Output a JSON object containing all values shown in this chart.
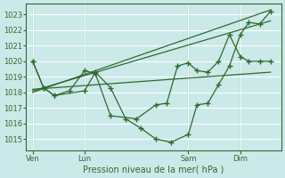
{
  "xlabel": "Pression niveau de la mer( hPa )",
  "bg_color": "#cce9e9",
  "grid_color": "#b0d8d8",
  "line_color": "#2d6a2d",
  "ylim": [
    1014.3,
    1023.7
  ],
  "yticks": [
    1015,
    1016,
    1017,
    1018,
    1019,
    1020,
    1021,
    1022,
    1023
  ],
  "xtick_labels": [
    "Ven",
    "Lun",
    "Sam",
    "Dim"
  ],
  "xtick_positions": [
    0,
    24,
    72,
    96
  ],
  "xlim": [
    -3,
    115
  ],
  "vlines": [
    0,
    24,
    72,
    96
  ],
  "trend1_x": [
    0,
    110
  ],
  "trend1_y": [
    1018.0,
    1023.3
  ],
  "trend2_x": [
    0,
    110
  ],
  "trend2_y": [
    1018.1,
    1022.6
  ],
  "trend3_x": [
    0,
    110
  ],
  "trend3_y": [
    1018.2,
    1019.3
  ],
  "jagged1_x": [
    0,
    5,
    10,
    17,
    24,
    29,
    36,
    48,
    57,
    62,
    67,
    72,
    76,
    81,
    86,
    91,
    96,
    100,
    105,
    110
  ],
  "jagged1_y": [
    1020.0,
    1018.3,
    1017.8,
    1018.1,
    1019.4,
    1019.2,
    1016.5,
    1016.3,
    1017.2,
    1017.3,
    1019.7,
    1019.9,
    1019.4,
    1019.3,
    1020.0,
    1021.7,
    1020.3,
    1020.0,
    1020.0,
    1020.0
  ],
  "jagged2_x": [
    0,
    5,
    10,
    24,
    29,
    36,
    43,
    50,
    57,
    64,
    72,
    76,
    81,
    86,
    91,
    96,
    100,
    105,
    110
  ],
  "jagged2_y": [
    1020.0,
    1018.3,
    1017.8,
    1018.1,
    1019.3,
    1018.3,
    1016.3,
    1015.7,
    1015.0,
    1014.8,
    1015.3,
    1017.2,
    1017.3,
    1018.5,
    1019.7,
    1021.7,
    1022.5,
    1022.4,
    1023.2
  ]
}
